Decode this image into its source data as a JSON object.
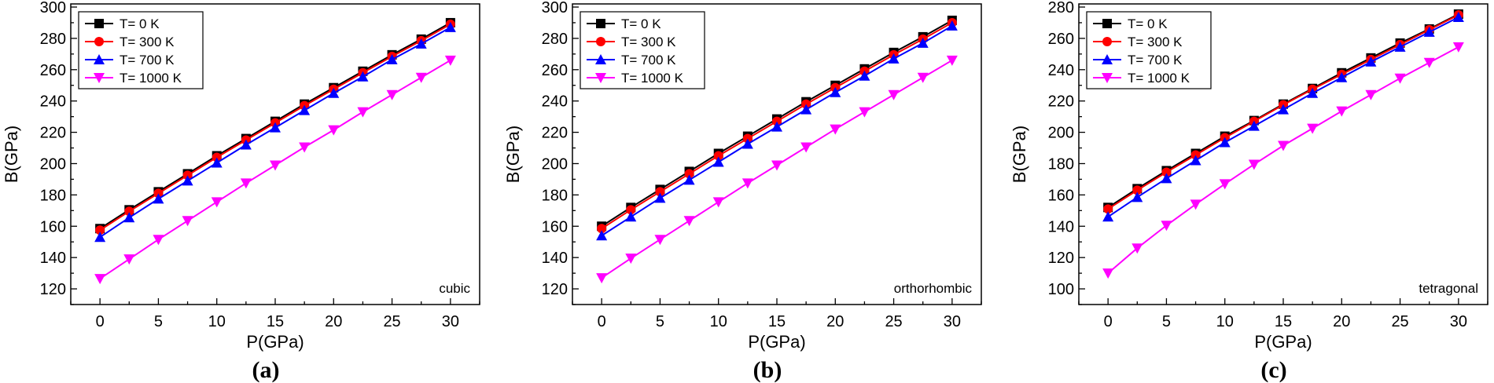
{
  "chart_data": [
    {
      "type": "line",
      "caption": "(a)",
      "annotation": "cubic",
      "xlabel": "P(GPa)",
      "ylabel": "B(GPa)",
      "xlim": [
        -2.5,
        32.5
      ],
      "ylim": [
        110,
        302
      ],
      "xticks": [
        0,
        5,
        10,
        15,
        20,
        25,
        30
      ],
      "yticks": [
        120,
        140,
        160,
        180,
        200,
        220,
        240,
        260,
        280,
        300
      ],
      "x": [
        0,
        2.5,
        5,
        7.5,
        10,
        12.5,
        15,
        17.5,
        20,
        22.5,
        25,
        27.5,
        30
      ],
      "series": [
        {
          "name": "T= 0 K",
          "color": "#000000",
          "marker": "square",
          "values": [
            158.5,
            170.5,
            182,
            193.5,
            205,
            216,
            227,
            238,
            248.5,
            259,
            269.5,
            279.5,
            290
          ]
        },
        {
          "name": "T= 300 K",
          "color": "#ff0000",
          "marker": "circle",
          "values": [
            157.5,
            169.5,
            181,
            192.5,
            204,
            215,
            226,
            237,
            247.5,
            258,
            268.5,
            278.5,
            289
          ]
        },
        {
          "name": "T= 700 K",
          "color": "#0000ff",
          "marker": "triangle-up",
          "values": [
            153,
            165.5,
            177.5,
            189,
            200.5,
            212,
            223,
            234,
            245,
            255.5,
            266.5,
            276.5,
            287
          ]
        },
        {
          "name": "T= 1000 K",
          "color": "#ff00ff",
          "marker": "triangle-down",
          "values": [
            126.5,
            139,
            151.5,
            163.5,
            175.5,
            187.5,
            199,
            210.5,
            221.5,
            233,
            244,
            255,
            266
          ]
        }
      ]
    },
    {
      "type": "line",
      "caption": "(b)",
      "annotation": "orthorhombic",
      "xlabel": "P(GPa)",
      "ylabel": "B(GPa)",
      "xlim": [
        -2.5,
        32.5
      ],
      "ylim": [
        110,
        302
      ],
      "xticks": [
        0,
        5,
        10,
        15,
        20,
        25,
        30
      ],
      "yticks": [
        120,
        140,
        160,
        180,
        200,
        220,
        240,
        260,
        280,
        300
      ],
      "x": [
        0,
        2.5,
        5,
        7.5,
        10,
        12.5,
        15,
        17.5,
        20,
        22.5,
        25,
        27.5,
        30
      ],
      "series": [
        {
          "name": "T= 0 K",
          "color": "#000000",
          "marker": "square",
          "values": [
            160,
            172,
            183.5,
            195,
            206.5,
            217.5,
            228.5,
            239.5,
            250,
            260.5,
            271,
            281,
            291.5
          ]
        },
        {
          "name": "T= 300 K",
          "color": "#ff0000",
          "marker": "circle",
          "values": [
            158.5,
            170.5,
            182,
            193.5,
            205,
            216,
            227,
            238,
            248.5,
            259,
            269.5,
            279.5,
            290
          ]
        },
        {
          "name": "T= 700 K",
          "color": "#0000ff",
          "marker": "triangle-up",
          "values": [
            154,
            166,
            178,
            189.5,
            201,
            212.5,
            223.5,
            234.5,
            245.5,
            256,
            267,
            277,
            288
          ]
        },
        {
          "name": "T= 1000 K",
          "color": "#ff00ff",
          "marker": "triangle-down",
          "values": [
            127,
            139.5,
            151.5,
            163.5,
            175.5,
            187.5,
            199,
            210.5,
            222,
            233,
            244,
            255,
            266
          ]
        }
      ]
    },
    {
      "type": "line",
      "caption": "(c)",
      "annotation": "tetragonal",
      "xlabel": "P(GPa)",
      "ylabel": "B(GPa)",
      "xlim": [
        -2.5,
        32.5
      ],
      "ylim": [
        90,
        282
      ],
      "xticks": [
        0,
        5,
        10,
        15,
        20,
        25,
        30
      ],
      "yticks": [
        100,
        120,
        140,
        160,
        180,
        200,
        220,
        240,
        260,
        280
      ],
      "x": [
        0,
        2.5,
        5,
        7.5,
        10,
        12.5,
        15,
        17.5,
        20,
        22.5,
        25,
        27.5,
        30
      ],
      "series": [
        {
          "name": "T= 0 K",
          "color": "#000000",
          "marker": "square",
          "values": [
            152,
            164,
            175.5,
            186.5,
            197.5,
            207.5,
            218,
            228,
            238,
            247.5,
            257,
            266,
            275.5
          ]
        },
        {
          "name": "T= 300 K",
          "color": "#ff0000",
          "marker": "circle",
          "values": [
            151,
            163,
            174.5,
            185.5,
            196.5,
            207,
            217.5,
            227.5,
            237,
            246.5,
            256,
            265.5,
            275
          ]
        },
        {
          "name": "T= 700 K",
          "color": "#0000ff",
          "marker": "triangle-up",
          "values": [
            146,
            158.5,
            170.5,
            182,
            193.5,
            204,
            214.5,
            225,
            235,
            245,
            254.5,
            264,
            273.5
          ]
        },
        {
          "name": "T= 1000 K",
          "color": "#ff00ff",
          "marker": "triangle-down",
          "values": [
            110,
            126,
            140.5,
            154,
            167,
            179.5,
            191.5,
            202.5,
            213.5,
            224,
            234.5,
            244.5,
            254.5
          ]
        }
      ]
    }
  ]
}
